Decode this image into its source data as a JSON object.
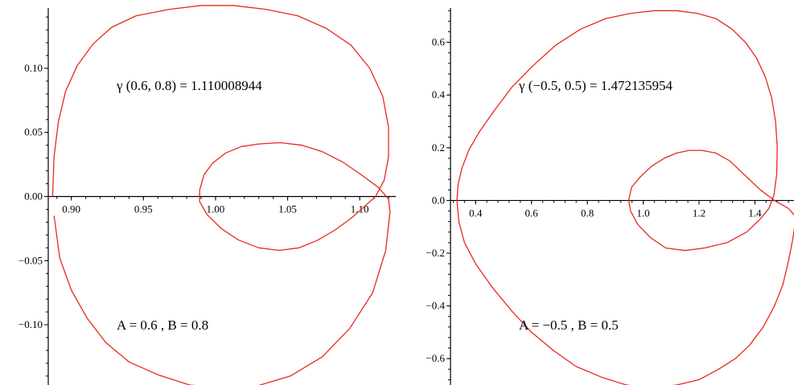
{
  "chart_data": [
    {
      "type": "line",
      "title": "",
      "xlabel": "",
      "ylabel": "",
      "xlim": [
        0.884,
        1.125
      ],
      "ylim": [
        -0.147,
        0.147
      ],
      "x_ticks": [
        0.9,
        0.95,
        1.0,
        1.05,
        1.1
      ],
      "x_tick_labels": [
        "0.90",
        "0.95",
        "1.00",
        "1.05",
        "1.10"
      ],
      "y_ticks": [
        0.1,
        0.05,
        0.0,
        -0.05,
        -0.1
      ],
      "y_tick_labels": [
        "0.10",
        "0.05",
        "0.00",
        "−0.05",
        "−0.10"
      ],
      "grid": false,
      "annotations": {
        "gamma": "γ (0.6, 0.8) = 1.110008944",
        "params": "A = 0.6 , B = 0.8"
      },
      "curve_color": "#e8281e",
      "series": [
        {
          "x": [
            0.887,
            0.888,
            0.891,
            0.896,
            0.904,
            0.915,
            0.928,
            0.945,
            0.968,
            0.99,
            1.012,
            1.035,
            1.057,
            1.077,
            1.094,
            1.107,
            1.116,
            1.12,
            1.12,
            1.117,
            1.111,
            1.103,
            1.094,
            1.083,
            1.071,
            1.058,
            1.044,
            1.03,
            1.016,
            1.004,
            0.994,
            0.989,
            0.989,
            0.992,
            0.998,
            1.007,
            1.018,
            1.03,
            1.045,
            1.06,
            1.074,
            1.088,
            1.101,
            1.113,
            1.12,
            1.121,
            1.118,
            1.109,
            1.093,
            1.074,
            1.052,
            1.028,
            1.005,
            0.982,
            0.96,
            0.94,
            0.924,
            0.911,
            0.9,
            0.892,
            0.888
          ],
          "y": [
            0.0,
            0.031,
            0.058,
            0.082,
            0.102,
            0.119,
            0.132,
            0.141,
            0.146,
            0.149,
            0.149,
            0.146,
            0.141,
            0.131,
            0.118,
            0.1,
            0.078,
            0.054,
            0.031,
            0.013,
            0.0,
            -0.008,
            -0.017,
            -0.026,
            -0.034,
            -0.04,
            -0.042,
            -0.04,
            -0.034,
            -0.025,
            -0.014,
            -0.004,
            0.005,
            0.017,
            0.026,
            0.034,
            0.039,
            0.041,
            0.042,
            0.04,
            0.035,
            0.027,
            0.017,
            0.007,
            -0.002,
            -0.012,
            -0.042,
            -0.075,
            -0.103,
            -0.125,
            -0.14,
            -0.148,
            -0.149,
            -0.147,
            -0.139,
            -0.129,
            -0.114,
            -0.095,
            -0.073,
            -0.048,
            -0.015
          ]
        }
      ]
    },
    {
      "type": "line",
      "title": "",
      "xlabel": "",
      "ylabel": "",
      "xlim": [
        0.31,
        1.54
      ],
      "ylim": [
        -0.7,
        0.73
      ],
      "x_ticks": [
        0.4,
        0.6,
        0.8,
        1.0,
        1.2,
        1.4
      ],
      "x_tick_labels": [
        "0.4",
        "0.6",
        "0.8",
        "1.0",
        "1.2",
        "1.4"
      ],
      "y_ticks": [
        0.6,
        0.4,
        0.2,
        0.0,
        -0.2,
        -0.4,
        -0.6
      ],
      "y_tick_labels": [
        "0.6",
        "0.4",
        "0.2",
        "0.0",
        "−0.2",
        "−0.4",
        "−0.6"
      ],
      "grid": false,
      "annotations": {
        "gamma": "γ (−0.5, 0.5) = 1.472135954",
        "params": "A = −0.5 , B = 0.5"
      },
      "curve_color": "#e8281e",
      "series": [
        {
          "x": [
            0.333,
            0.337,
            0.35,
            0.375,
            0.413,
            0.466,
            0.53,
            0.604,
            0.688,
            0.776,
            0.866,
            0.955,
            1.04,
            1.12,
            1.194,
            1.26,
            1.318,
            1.366,
            1.406,
            1.437,
            1.46,
            1.474,
            1.48,
            1.478,
            1.468,
            1.45,
            1.42,
            1.37,
            1.3,
            1.22,
            1.15,
            1.08,
            1.025,
            0.98,
            0.955,
            0.948,
            0.958,
            0.99,
            1.03,
            1.075,
            1.12,
            1.165,
            1.21,
            1.26,
            1.31,
            1.36,
            1.42,
            1.47,
            1.52,
            1.545
          ],
          "y": [
            0.0,
            0.06,
            0.12,
            0.19,
            0.26,
            0.34,
            0.43,
            0.51,
            0.59,
            0.65,
            0.69,
            0.71,
            0.72,
            0.72,
            0.71,
            0.69,
            0.65,
            0.6,
            0.54,
            0.47,
            0.39,
            0.3,
            0.2,
            0.1,
            0.02,
            -0.03,
            -0.07,
            -0.12,
            -0.16,
            -0.18,
            -0.19,
            -0.18,
            -0.14,
            -0.09,
            -0.04,
            0.0,
            0.05,
            0.09,
            0.13,
            0.16,
            0.18,
            0.19,
            0.19,
            0.18,
            0.15,
            0.1,
            0.04,
            0.0,
            -0.03,
            -0.06
          ]
        },
        {
          "x": [
            0.333,
            0.34,
            0.36,
            0.4,
            0.46,
            0.53,
            0.6,
            0.68,
            0.76,
            0.85,
            0.94,
            1.03,
            1.12,
            1.2,
            1.27,
            1.33,
            1.38,
            1.43,
            1.47,
            1.5,
            1.52,
            1.535,
            1.545
          ],
          "y": [
            0.0,
            -0.08,
            -0.16,
            -0.24,
            -0.33,
            -0.42,
            -0.5,
            -0.57,
            -0.63,
            -0.67,
            -0.7,
            -0.71,
            -0.7,
            -0.68,
            -0.64,
            -0.6,
            -0.55,
            -0.48,
            -0.4,
            -0.32,
            -0.23,
            -0.15,
            -0.08
          ]
        }
      ]
    }
  ]
}
